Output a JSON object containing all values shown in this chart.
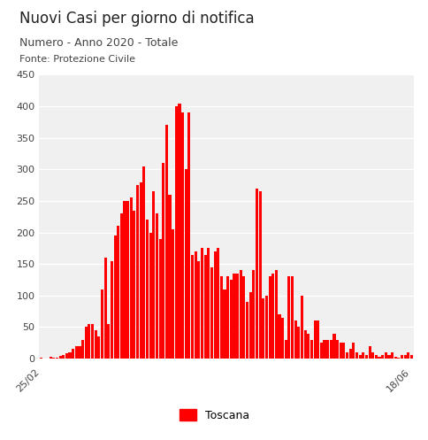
{
  "title": "Nuovi Casi per giorno di notifica",
  "subtitle": "Numero - Anno 2020 - Totale",
  "source": "Fonte: Protezione Civile",
  "legend_label": "Toscana",
  "bar_color": "#ff0000",
  "background_color": "#ffffff",
  "plot_bg_color": "#f0f0f0",
  "grid_color": "#ffffff",
  "ylim": [
    0,
    450
  ],
  "yticks": [
    0,
    50,
    100,
    150,
    200,
    250,
    300,
    350,
    400,
    450
  ],
  "x_start_label": "25/02",
  "x_end_label": "18/06",
  "title_fontsize": 12,
  "subtitle_fontsize": 9,
  "source_fontsize": 8,
  "values": [
    2,
    0,
    0,
    3,
    1,
    2,
    4,
    5,
    8,
    10,
    15,
    20,
    20,
    30,
    50,
    55,
    55,
    45,
    35,
    110,
    160,
    55,
    155,
    195,
    210,
    230,
    250,
    250,
    255,
    235,
    275,
    280,
    305,
    220,
    200,
    265,
    230,
    190,
    310,
    370,
    260,
    205,
    400,
    405,
    390,
    300,
    390,
    165,
    170,
    155,
    175,
    165,
    175,
    145,
    170,
    175,
    130,
    110,
    130,
    125,
    135,
    135,
    140,
    130,
    90,
    105,
    140,
    270,
    265,
    95,
    100,
    130,
    135,
    140,
    70,
    65,
    30,
    130,
    130,
    60,
    50,
    100,
    45,
    40,
    30,
    60,
    60,
    25,
    30,
    30,
    30,
    40,
    30,
    25,
    25,
    10,
    15,
    25,
    10,
    5,
    10,
    5,
    20,
    10,
    5,
    3,
    5,
    10,
    5,
    10,
    3,
    2,
    5,
    5,
    10,
    5
  ]
}
